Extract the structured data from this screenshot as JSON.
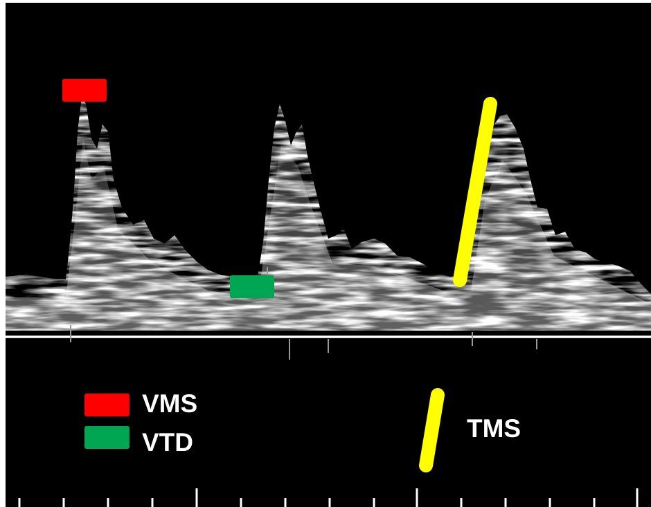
{
  "legend": {
    "vms": {
      "label": "VMS",
      "color": "#ff0000"
    },
    "vtd": {
      "label": "VTD",
      "color": "#00a651"
    },
    "tms": {
      "label": "TMS",
      "color": "#ffff00"
    }
  },
  "waveform": {
    "cycles": 3,
    "signal_color": "#ffffff",
    "background": "#000000"
  }
}
